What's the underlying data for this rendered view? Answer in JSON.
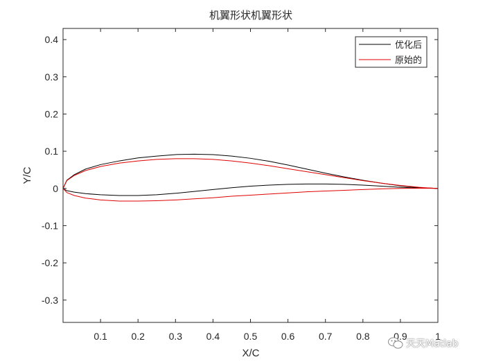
{
  "chart_data": {
    "type": "line",
    "title": "机翼形状机翼形状",
    "xlabel": "X/C",
    "ylabel": "Y/C",
    "xlim": [
      0,
      1
    ],
    "ylim": [
      -0.36,
      0.43
    ],
    "x_ticks": [
      0.1,
      0.2,
      0.3,
      0.4,
      0.5,
      0.6,
      0.7,
      0.8,
      0.9,
      1
    ],
    "x_tick_labels": [
      "0.1",
      "0.2",
      "0.3",
      "0.4",
      "0.5",
      "0.6",
      "0.7",
      "0.8",
      "0.9",
      "1"
    ],
    "y_ticks": [
      0.4,
      0.3,
      0.2,
      0.1,
      0,
      -0.1,
      -0.2,
      -0.3
    ],
    "y_tick_labels": [
      "0.4",
      "0.3",
      "0.2",
      "0.1",
      "0",
      "-0.1",
      "-0.2",
      "-0.3"
    ],
    "grid": false,
    "legend_position": "top-right",
    "series": [
      {
        "name": "优化后",
        "color": "#000000",
        "upper_x": [
          0,
          0.01,
          0.03,
          0.06,
          0.1,
          0.15,
          0.2,
          0.25,
          0.3,
          0.35,
          0.4,
          0.45,
          0.5,
          0.55,
          0.6,
          0.65,
          0.7,
          0.75,
          0.8,
          0.85,
          0.9,
          0.95,
          0.98,
          1
        ],
        "upper_y": [
          0,
          0.022,
          0.037,
          0.052,
          0.064,
          0.074,
          0.082,
          0.087,
          0.091,
          0.092,
          0.091,
          0.087,
          0.081,
          0.073,
          0.063,
          0.052,
          0.041,
          0.031,
          0.022,
          0.014,
          0.007,
          0.002,
          0.001,
          0
        ],
        "lower_x": [
          0,
          0.01,
          0.03,
          0.06,
          0.1,
          0.15,
          0.2,
          0.25,
          0.3,
          0.35,
          0.4,
          0.45,
          0.5,
          0.55,
          0.6,
          0.65,
          0.7,
          0.75,
          0.8,
          0.85,
          0.9,
          0.95,
          0.98,
          1
        ],
        "lower_y": [
          0,
          -0.006,
          -0.01,
          -0.014,
          -0.017,
          -0.019,
          -0.019,
          -0.017,
          -0.013,
          -0.008,
          -0.003,
          0.002,
          0.006,
          0.009,
          0.011,
          0.012,
          0.012,
          0.011,
          0.009,
          0.006,
          0.003,
          0.001,
          0.0005,
          0
        ]
      },
      {
        "name": "原始的",
        "color": "#e00000",
        "upper_x": [
          0,
          0.01,
          0.03,
          0.06,
          0.1,
          0.15,
          0.2,
          0.25,
          0.3,
          0.35,
          0.4,
          0.45,
          0.5,
          0.55,
          0.6,
          0.65,
          0.7,
          0.75,
          0.8,
          0.85,
          0.9,
          0.95,
          0.98,
          1
        ],
        "upper_y": [
          0,
          0.021,
          0.035,
          0.048,
          0.059,
          0.068,
          0.074,
          0.078,
          0.08,
          0.08,
          0.078,
          0.074,
          0.068,
          0.061,
          0.053,
          0.045,
          0.037,
          0.029,
          0.021,
          0.014,
          0.008,
          0.003,
          0.001,
          0
        ],
        "lower_x": [
          0,
          0.01,
          0.03,
          0.06,
          0.1,
          0.15,
          0.2,
          0.25,
          0.3,
          0.35,
          0.4,
          0.45,
          0.5,
          0.55,
          0.6,
          0.65,
          0.7,
          0.75,
          0.8,
          0.85,
          0.9,
          0.95,
          0.98,
          1
        ],
        "lower_y": [
          0,
          -0.011,
          -0.019,
          -0.026,
          -0.031,
          -0.034,
          -0.034,
          -0.033,
          -0.031,
          -0.028,
          -0.025,
          -0.021,
          -0.018,
          -0.015,
          -0.012,
          -0.009,
          -0.007,
          -0.005,
          -0.003,
          -0.001,
          0,
          0.0005,
          0.0003,
          0
        ]
      }
    ]
  },
  "watermark": {
    "text": "天天Matlab",
    "icon": "wechat-icon"
  }
}
